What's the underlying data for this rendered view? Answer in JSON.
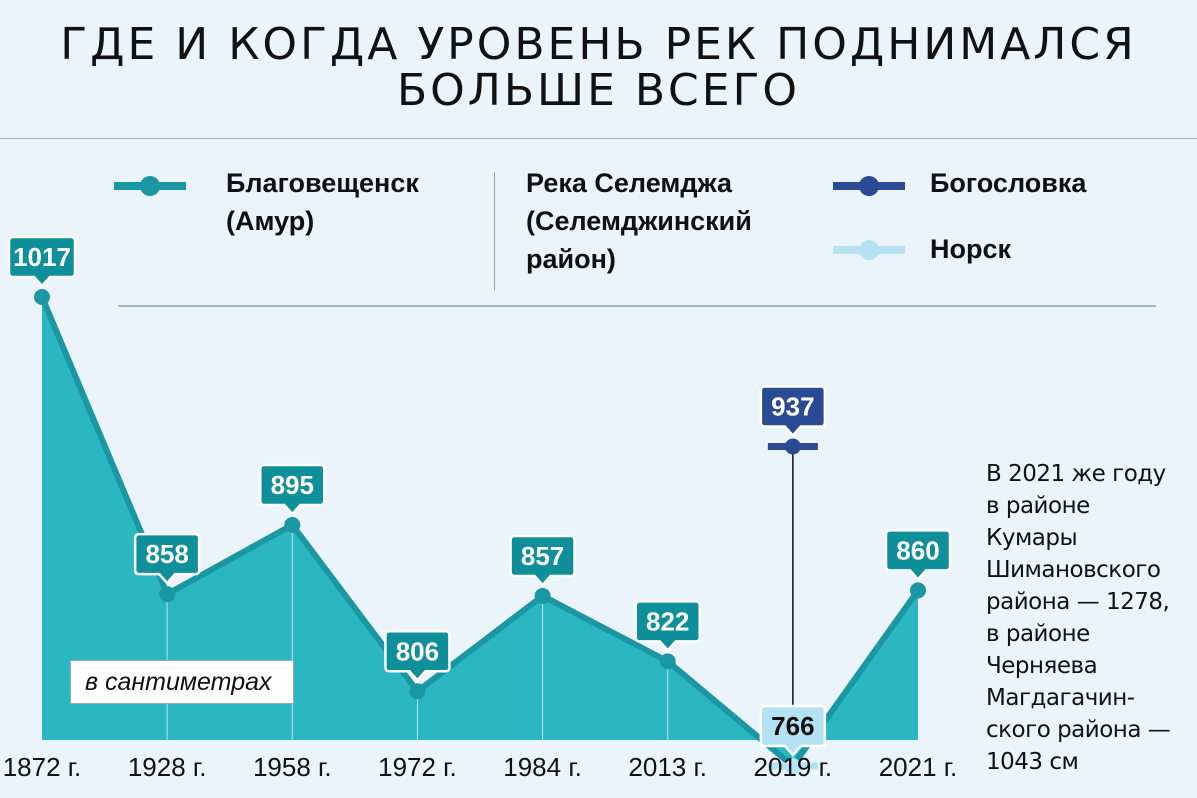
{
  "title_line1": "ГДЕ И КОГДА УРОВЕНЬ РЕК ПОДНИМАЛСЯ",
  "title_line2": "БОЛЬШЕ ВСЕГО",
  "legend": {
    "blag_line1": "Благовещенск",
    "blag_line2": "(Амур)",
    "river_line1": "Река Селемджа",
    "river_line2": "(Селемджинский",
    "river_line3": "район)",
    "bogoslovka": "Богословка",
    "norsk": "Норск"
  },
  "unit": "в сантиметрах",
  "note_lines": [
    "В 2021 же году",
    "в районе",
    "Кумары",
    "Шимановского",
    "района — 1278,",
    "в районе",
    "Черняева",
    "Магдагачин-",
    "ского района —",
    "1043 см"
  ],
  "colors": {
    "teal_line": "#1b97a4",
    "teal_fill": "#2bb7c2",
    "label_bg": "#0f8f99",
    "bogoslovka": "#2b4a94",
    "norsk": "#b5e2f3",
    "background": "#eaf4fa"
  },
  "chart_data": {
    "type": "area",
    "categories": [
      "1872 г.",
      "1928 г.",
      "1958 г.",
      "1972 г.",
      "1984 г.",
      "2013 г.",
      "2019 г.",
      "2021 г."
    ],
    "series": [
      {
        "name": "Благовещенск (Амур)",
        "values": [
          1017,
          858,
          895,
          806,
          857,
          822,
          766,
          860
        ]
      },
      {
        "name": "Богословка",
        "points": [
          {
            "x": "2019 г.",
            "y": 937
          }
        ]
      },
      {
        "name": "Норск",
        "points": [
          {
            "x": "2019 г.",
            "y": 766
          }
        ]
      }
    ],
    "value_labels": [
      "1017",
      "858",
      "895",
      "806",
      "857",
      "822",
      "937",
      "766",
      "860"
    ],
    "ylabel": "в сантиметрах",
    "grid": false,
    "legend_position": "top"
  }
}
